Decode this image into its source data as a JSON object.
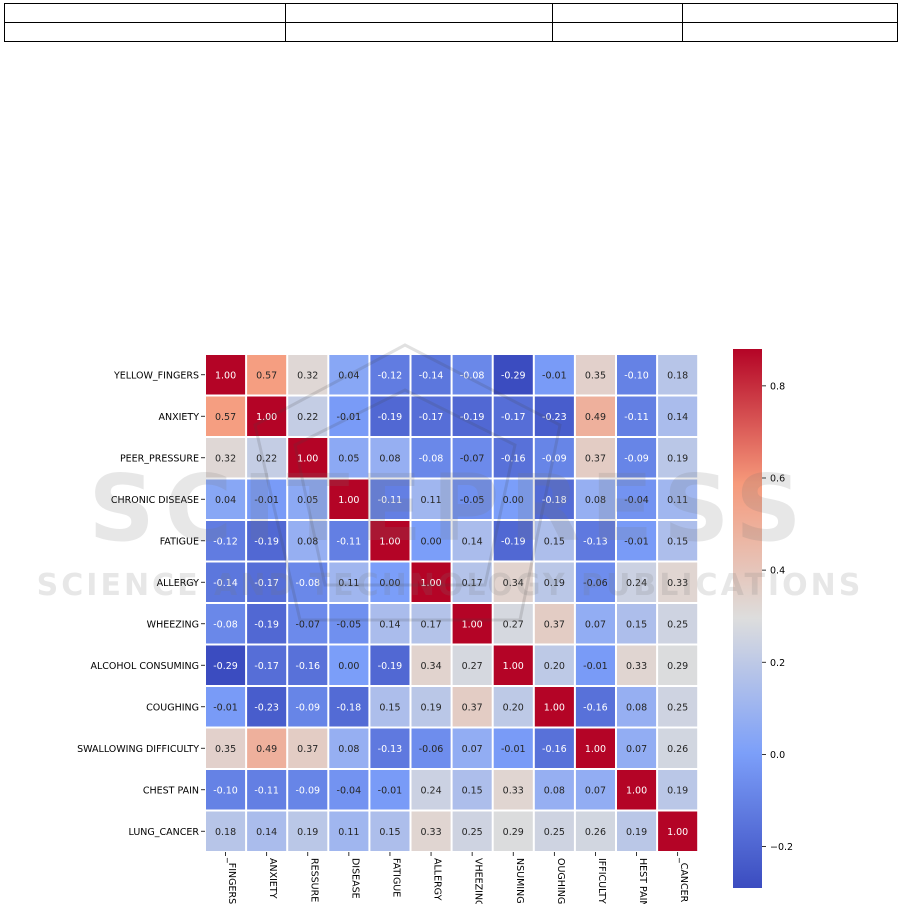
{
  "table": {
    "rows": [
      [
        "",
        "",
        "",
        ""
      ],
      [
        "",
        "",
        "",
        ""
      ]
    ]
  },
  "watermark": {
    "brand": "SCITEPRESS",
    "tagline": "SCIENCE AND TECHNOLOGY PUBLICATIONS"
  },
  "chart_data": {
    "type": "heatmap",
    "title": "",
    "row_labels": [
      "YELLOW_FINGERS",
      "ANXIETY",
      "PEER_PRESSURE",
      "CHRONIC DISEASE",
      "FATIGUE",
      "ALLERGY",
      "WHEEZING",
      "ALCOHOL CONSUMING",
      "COUGHING",
      "SWALLOWING DIFFICULTY",
      "CHEST PAIN",
      "LUNG_CANCER"
    ],
    "col_labels": [
      "_FINGERS",
      "ANXIETY",
      "RESSURE",
      "DISEASE",
      "FATIGUE",
      "ALLERGY",
      "VHEEZING",
      "NSUMING",
      "OUGHING",
      "IFFICULTY",
      "HEST PAIN",
      "_CANCER"
    ],
    "values": [
      [
        1.0,
        0.57,
        0.32,
        0.04,
        -0.12,
        -0.14,
        -0.08,
        -0.29,
        -0.01,
        0.35,
        -0.1,
        0.18
      ],
      [
        0.57,
        1.0,
        0.22,
        -0.01,
        -0.19,
        -0.17,
        -0.19,
        -0.17,
        -0.23,
        0.49,
        -0.11,
        0.14
      ],
      [
        0.32,
        0.22,
        1.0,
        0.05,
        0.08,
        -0.08,
        -0.07,
        -0.16,
        -0.09,
        0.37,
        -0.09,
        0.19
      ],
      [
        0.04,
        -0.01,
        0.05,
        1.0,
        -0.11,
        0.11,
        -0.05,
        0.0,
        -0.18,
        0.08,
        -0.04,
        0.11
      ],
      [
        -0.12,
        -0.19,
        0.08,
        -0.11,
        1.0,
        0.0,
        0.14,
        -0.19,
        0.15,
        -0.13,
        -0.01,
        0.15
      ],
      [
        -0.14,
        -0.17,
        -0.08,
        0.11,
        0.0,
        1.0,
        0.17,
        0.34,
        0.19,
        -0.06,
        0.24,
        0.33
      ],
      [
        -0.08,
        -0.19,
        -0.07,
        -0.05,
        0.14,
        0.17,
        1.0,
        0.27,
        0.37,
        0.07,
        0.15,
        0.25
      ],
      [
        -0.29,
        -0.17,
        -0.16,
        0.0,
        -0.19,
        0.34,
        0.27,
        1.0,
        0.2,
        -0.01,
        0.33,
        0.29
      ],
      [
        -0.01,
        -0.23,
        -0.09,
        -0.18,
        0.15,
        0.19,
        0.37,
        0.2,
        1.0,
        -0.16,
        0.08,
        0.25
      ],
      [
        0.35,
        0.49,
        0.37,
        0.08,
        -0.13,
        -0.06,
        0.07,
        -0.01,
        -0.16,
        1.0,
        0.07,
        0.26
      ],
      [
        -0.1,
        -0.11,
        -0.09,
        -0.04,
        -0.01,
        0.24,
        0.15,
        0.33,
        0.08,
        0.07,
        1.0,
        0.19
      ],
      [
        0.18,
        0.14,
        0.19,
        0.11,
        0.15,
        0.33,
        0.25,
        0.29,
        0.25,
        0.26,
        0.19,
        1.0
      ]
    ],
    "colormap": "coolwarm",
    "vmin": -0.29,
    "vmax": 0.88,
    "colorbar_ticks": [
      -0.2,
      0.0,
      0.2,
      0.4,
      0.6,
      0.8
    ],
    "colorbar_tick_labels": [
      "−0.2",
      "0.0",
      "0.2",
      "0.4",
      "0.6",
      "0.8"
    ],
    "annotate": true,
    "value_format": "0.00"
  }
}
